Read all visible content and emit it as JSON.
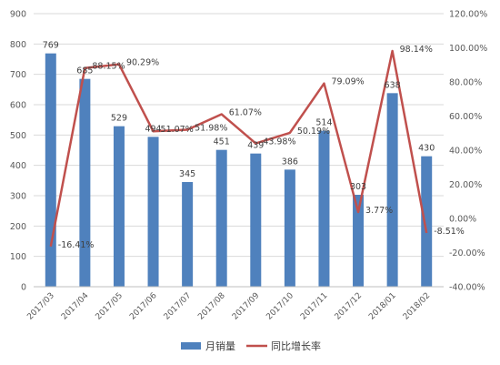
{
  "chart_data": {
    "type": "bar",
    "categories": [
      "2017/03",
      "2017/04",
      "2017/05",
      "2017/06",
      "2017/07",
      "2017/08",
      "2017/09",
      "2017/10",
      "2017/11",
      "2017/12",
      "2018/01",
      "2018/02"
    ],
    "series": [
      {
        "name": "月销量",
        "type": "bar",
        "axis": "left",
        "values": [
          769,
          685,
          529,
          494,
          345,
          451,
          439,
          386,
          514,
          303,
          638,
          430
        ],
        "labels": [
          "769",
          "685",
          "529",
          "494",
          "345",
          "451",
          "439",
          "386",
          "514",
          "303",
          "638",
          "430"
        ]
      },
      {
        "name": "同比增长率",
        "type": "line",
        "axis": "right",
        "values": [
          -16.41,
          88.15,
          90.29,
          51.07,
          51.98,
          61.07,
          43.98,
          50.19,
          79.09,
          3.77,
          98.14,
          -8.51
        ],
        "labels": [
          "-16.41%",
          "88.15%",
          "90.29%",
          "51.07%",
          "51.98%",
          "61.07%",
          "43.98%",
          "50.19%",
          "79.09%",
          "3.77%",
          "98.14%",
          "-8.51%"
        ]
      }
    ],
    "y_left": {
      "min": 0,
      "max": 900,
      "step": 100,
      "ticks": [
        "0",
        "100",
        "200",
        "300",
        "400",
        "500",
        "600",
        "700",
        "800",
        "900"
      ]
    },
    "y_right": {
      "min": -40,
      "max": 120,
      "step": 20,
      "ticks": [
        "-40.00%",
        "-20.00%",
        "0.00%",
        "20.00%",
        "40.00%",
        "60.00%",
        "80.00%",
        "100.00%",
        "120.00%"
      ]
    },
    "legend": {
      "position": "bottom",
      "items": [
        "月销量",
        "同比增长率"
      ]
    },
    "grid": true,
    "colors": {
      "bar": "#4f81bd",
      "line": "#c0504d",
      "grid": "#d9d9d9",
      "text": "#595959"
    }
  }
}
